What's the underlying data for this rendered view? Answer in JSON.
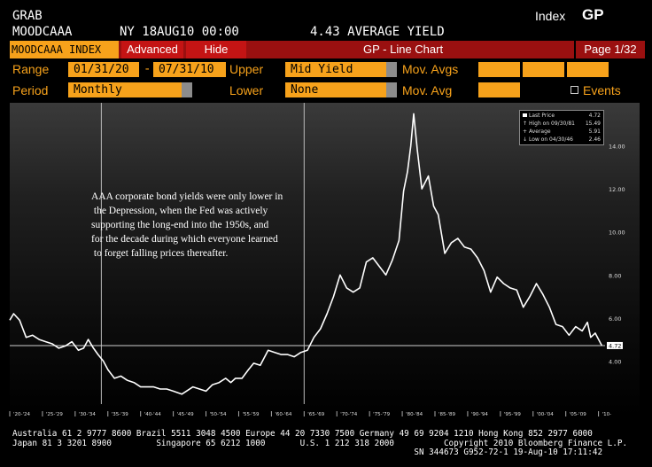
{
  "header": {
    "top_left": "GRAB",
    "ticker": "MOODCAAA",
    "loc_date": "NY 18AUG10 00:00",
    "value_desc": "4.43 AVERAGE YIELD",
    "index_label": "Index",
    "gp_label": "GP"
  },
  "menu": {
    "security": "MOODCAAA INDEX",
    "advanced": "Advanced",
    "hide": "Hide",
    "title": "GP - Line Chart",
    "page": "Page 1/32"
  },
  "controls": {
    "range_label": "Range",
    "range_start": "01/31/20",
    "range_dash": "-",
    "range_end": "07/31/10",
    "upper_label": "Upper",
    "upper_value": "Mid Yield",
    "movavgs_label": "Mov. Avgs",
    "period_label": "Period",
    "period_value": "Monthly",
    "lower_label": "Lower",
    "lower_value": "None",
    "movavg_label": "Mov. Avg",
    "events_label": "Events"
  },
  "legend": {
    "rows": [
      {
        "label": "Last Price",
        "value": "4.72"
      },
      {
        "label": "High on 09/30/81",
        "value": "15.49"
      },
      {
        "label": "Average",
        "value": "5.91"
      },
      {
        "label": "Low on 04/30/46",
        "value": "2.46"
      }
    ]
  },
  "annotation": [
    "AAA corporate bond yields were only lower in",
    " the Depression, when the Fed was actively",
    "supporting the long-end into the 1950s, and",
    "for the decade during which everyone learned",
    " to forget falling prices thereafter."
  ],
  "footer": [
    "Australia 61 2 9777 8600 Brazil 5511 3048 4500 Europe 44 20 7330 7500 Germany 49 69 9204 1210 Hong Kong 852 2977 6000",
    "Japan 81 3 3201 8900         Singapore 65 6212 1000       U.S. 1 212 318 2000          Copyright 2010 Bloomberg Finance L.P.",
    "                                                                                 SN 344673 G952-72-1 19-Aug-10 17:11:42"
  ],
  "colors": {
    "accent": "#f7a21b",
    "menu_red": "#c41414",
    "menu_dark_red": "#9a1010",
    "line": "#ffffff"
  },
  "chart_data": {
    "type": "line",
    "ylim": [
      2,
      16
    ],
    "yticks": [
      4,
      6,
      8,
      10,
      12,
      14
    ],
    "ytick_labels": [
      "4.00",
      "6.00",
      "8.00",
      "10.00",
      "12.00",
      "14.00"
    ],
    "xlim": [
      1920,
      2011
    ],
    "xtick_labels": [
      "'20-'24",
      "'25-'29",
      "'30-'34",
      "'35-'39",
      "'40-'44",
      "'45-'49",
      "'50-'54",
      "'55-'59",
      "'60-'64",
      "'65-'69",
      "'70-'74",
      "'75-'79",
      "'80-'84",
      "'85-'89",
      "'90-'94",
      "'95-'99",
      "'00-'04",
      "'05-'09",
      "'10-"
    ],
    "reference_line": 4.72,
    "last_value_label": "4.72",
    "vertical_markers": [
      1934.0,
      1965.0
    ],
    "series": [
      {
        "x": [
          1920,
          1920.6,
          1921.5,
          1922.5,
          1923.5,
          1924.5,
          1925.5,
          1926.5,
          1927.5,
          1928.5,
          1929.5,
          1930.5,
          1931.3,
          1932,
          1932.8,
          1933.5,
          1934.3,
          1935,
          1936,
          1937,
          1938,
          1939,
          1940,
          1941,
          1942,
          1943,
          1944,
          1945,
          1946.3,
          1947,
          1948,
          1949,
          1950,
          1951,
          1952,
          1953,
          1953.8,
          1954.5,
          1955.5,
          1956.5,
          1957.3,
          1958.3,
          1959.5,
          1960.5,
          1961.5,
          1962.5,
          1963.5,
          1964.5,
          1965.5,
          1966.5,
          1967.5,
          1968.5,
          1969.5,
          1970.5,
          1971.5,
          1972.5,
          1973.5,
          1974.5,
          1975.5,
          1976.5,
          1977.5,
          1978.5,
          1979.5,
          1980.2,
          1980.8,
          1981.3,
          1981.75,
          1982.3,
          1983,
          1984,
          1984.8,
          1985.5,
          1986.5,
          1987.5,
          1988.5,
          1989.5,
          1990.5,
          1991.5,
          1992.5,
          1993.5,
          1994.5,
          1995.5,
          1996.5,
          1997.5,
          1998.5,
          1999.5,
          2000.5,
          2001.5,
          2002.5,
          2003.5,
          2004.5,
          2005.5,
          2006.5,
          2007.5,
          2008.3,
          2008.8,
          2009.5,
          2010.5
        ],
        "values": [
          5.9,
          6.2,
          5.9,
          5.1,
          5.2,
          5.0,
          4.9,
          4.8,
          4.6,
          4.7,
          4.9,
          4.5,
          4.6,
          5.0,
          4.6,
          4.3,
          4.0,
          3.6,
          3.2,
          3.3,
          3.1,
          3.0,
          2.8,
          2.8,
          2.8,
          2.7,
          2.7,
          2.6,
          2.46,
          2.6,
          2.8,
          2.7,
          2.6,
          2.9,
          3.0,
          3.2,
          3.0,
          3.2,
          3.2,
          3.6,
          3.9,
          3.8,
          4.5,
          4.4,
          4.3,
          4.3,
          4.2,
          4.4,
          4.5,
          5.1,
          5.5,
          6.2,
          7.0,
          8.0,
          7.4,
          7.2,
          7.4,
          8.6,
          8.8,
          8.4,
          8.0,
          8.7,
          9.6,
          11.9,
          12.8,
          14.0,
          15.49,
          13.8,
          12.0,
          12.6,
          11.2,
          10.8,
          9.0,
          9.5,
          9.7,
          9.3,
          9.2,
          8.8,
          8.2,
          7.2,
          7.9,
          7.6,
          7.4,
          7.3,
          6.5,
          7.0,
          7.6,
          7.1,
          6.5,
          5.7,
          5.6,
          5.2,
          5.6,
          5.4,
          5.8,
          5.1,
          5.3,
          4.72
        ]
      }
    ]
  }
}
